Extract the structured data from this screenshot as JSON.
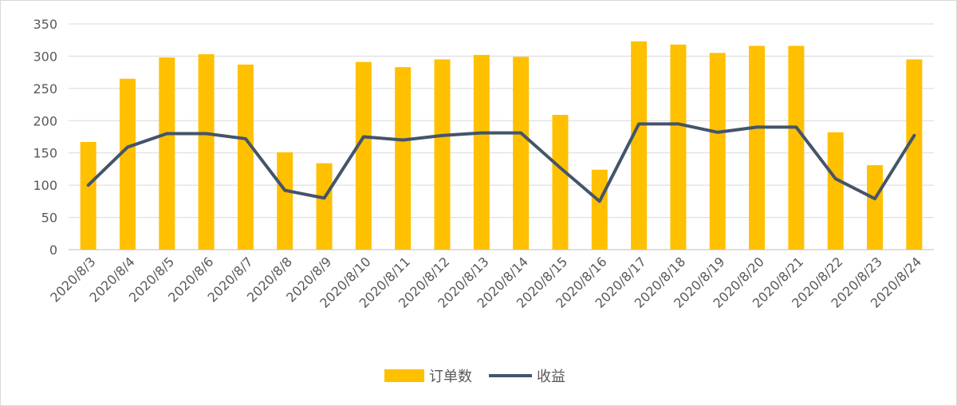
{
  "chart_data": {
    "type": "bar",
    "categories": [
      "2020/8/3",
      "2020/8/4",
      "2020/8/5",
      "2020/8/6",
      "2020/8/7",
      "2020/8/8",
      "2020/8/9",
      "2020/8/10",
      "2020/8/11",
      "2020/8/12",
      "2020/8/13",
      "2020/8/14",
      "2020/8/15",
      "2020/8/16",
      "2020/8/17",
      "2020/8/18",
      "2020/8/19",
      "2020/8/20",
      "2020/8/21",
      "2020/8/22",
      "2020/8/23",
      "2020/8/24"
    ],
    "series": [
      {
        "name": "订单数",
        "type": "bar",
        "color": "#FFC000",
        "values": [
          167,
          265,
          298,
          303,
          287,
          151,
          134,
          291,
          283,
          295,
          302,
          299,
          209,
          124,
          323,
          318,
          305,
          316,
          316,
          182,
          131,
          295
        ]
      },
      {
        "name": "收益",
        "type": "line",
        "color": "#44546A",
        "values": [
          100,
          159,
          180,
          180,
          172,
          92,
          80,
          175,
          170,
          177,
          181,
          181,
          127,
          75,
          195,
          195,
          182,
          190,
          190,
          110,
          79,
          177
        ]
      }
    ],
    "yticks": [
      "0",
      "50",
      "100",
      "150",
      "200",
      "250",
      "300",
      "350"
    ],
    "ylim": [
      0,
      350
    ],
    "grid": true,
    "legend_position": "bottom-center"
  }
}
